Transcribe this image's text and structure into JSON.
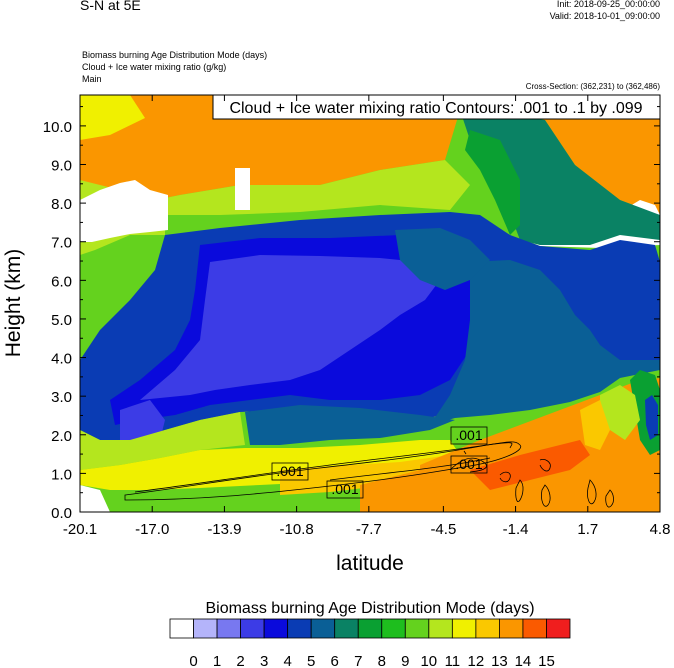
{
  "header": {
    "title": "S-N at 5E",
    "init": "Init: 2018-09-25_00:00:00",
    "valid": "Valid: 2018-10-01_09:00:00",
    "field1": "Biomass burning Age Distribution Mode   (days)",
    "field2": "Cloud + Ice water mixing ratio   (g/kg)",
    "field3": "Main",
    "cross_section": "Cross-Section: (362,231) to (362,486)"
  },
  "chart_data": {
    "type": "heatmap",
    "contour_info": "Cloud + Ice water mixing ratio Contours: .001 to .1 by .099",
    "contour_labels": [
      ".001",
      ".001",
      ".001",
      ".001"
    ],
    "xlabel": "latitude",
    "ylabel": "Height (km)",
    "x_ticks": [
      "-20.1",
      "-17.0",
      "-13.9",
      "-10.8",
      "-7.7",
      "-4.5",
      "-1.4",
      "1.7",
      "4.8"
    ],
    "x_tick_values": [
      -20.1,
      -17.0,
      -13.9,
      -10.8,
      -7.7,
      -4.5,
      -1.4,
      1.7,
      4.8
    ],
    "y_ticks": [
      "0.0",
      "1.0",
      "2.0",
      "3.0",
      "4.0",
      "5.0",
      "6.0",
      "7.0",
      "8.0",
      "9.0",
      "10.0"
    ],
    "xlim": [
      -20.1,
      4.8
    ],
    "ylim": [
      0,
      10.8
    ],
    "colorbar_label": "Biomass burning Age Distribution Mode  (days)",
    "colorbar_ticks": [
      "0",
      "1",
      "2",
      "3",
      "4",
      "5",
      "6",
      "7",
      "8",
      "9",
      "10",
      "11",
      "12",
      "13",
      "14",
      "15"
    ],
    "colorbar_colors": [
      "#ffffff",
      "#b4b4fa",
      "#7878f0",
      "#3c3ce6",
      "#0a0adc",
      "#0a3cb4",
      "#0a5f96",
      "#0a8264",
      "#0aa032",
      "#1ebe1e",
      "#64d21e",
      "#b4e61e",
      "#f0f000",
      "#fac800",
      "#fa9600",
      "#fa5a00",
      "#f01e1e"
    ]
  }
}
